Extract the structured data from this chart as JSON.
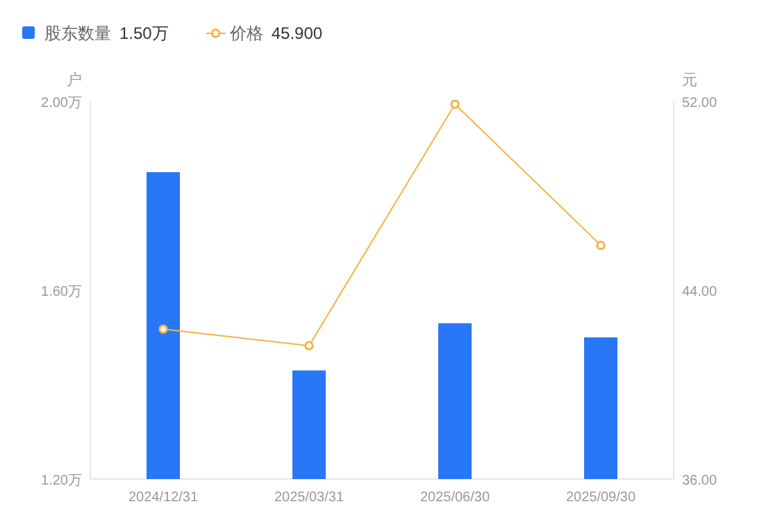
{
  "chart_data": {
    "type": "bar",
    "categories": [
      "2024/12/31",
      "2025/03/31",
      "2025/06/30",
      "2025/09/30"
    ],
    "series": [
      {
        "name": "股东数量",
        "color": "#2777f6",
        "values": [
          1.85,
          1.43,
          1.53,
          1.5
        ]
      },
      {
        "name": "价格",
        "type": "line",
        "axis": "y2",
        "color": "#f5b342",
        "values": [
          42.35,
          41.65,
          51.88,
          45.9
        ]
      }
    ],
    "ylabel": "户",
    "y2label": "元",
    "ylim": [
      1.2,
      2.0
    ],
    "yticks": [
      {
        "value": 1.2,
        "label": "1.20万"
      },
      {
        "value": 1.6,
        "label": "1.60万"
      },
      {
        "value": 2.0,
        "label": "2.00万"
      }
    ],
    "y2lim": [
      36,
      52
    ],
    "y2ticks": [
      {
        "value": 36,
        "label": "36.00"
      },
      {
        "value": 44,
        "label": "44.00"
      },
      {
        "value": 52,
        "label": "52.00"
      }
    ],
    "annotations": [
      "1.50万",
      "45.900"
    ],
    "legend": "top left",
    "marker": "circle",
    "grid": false
  }
}
